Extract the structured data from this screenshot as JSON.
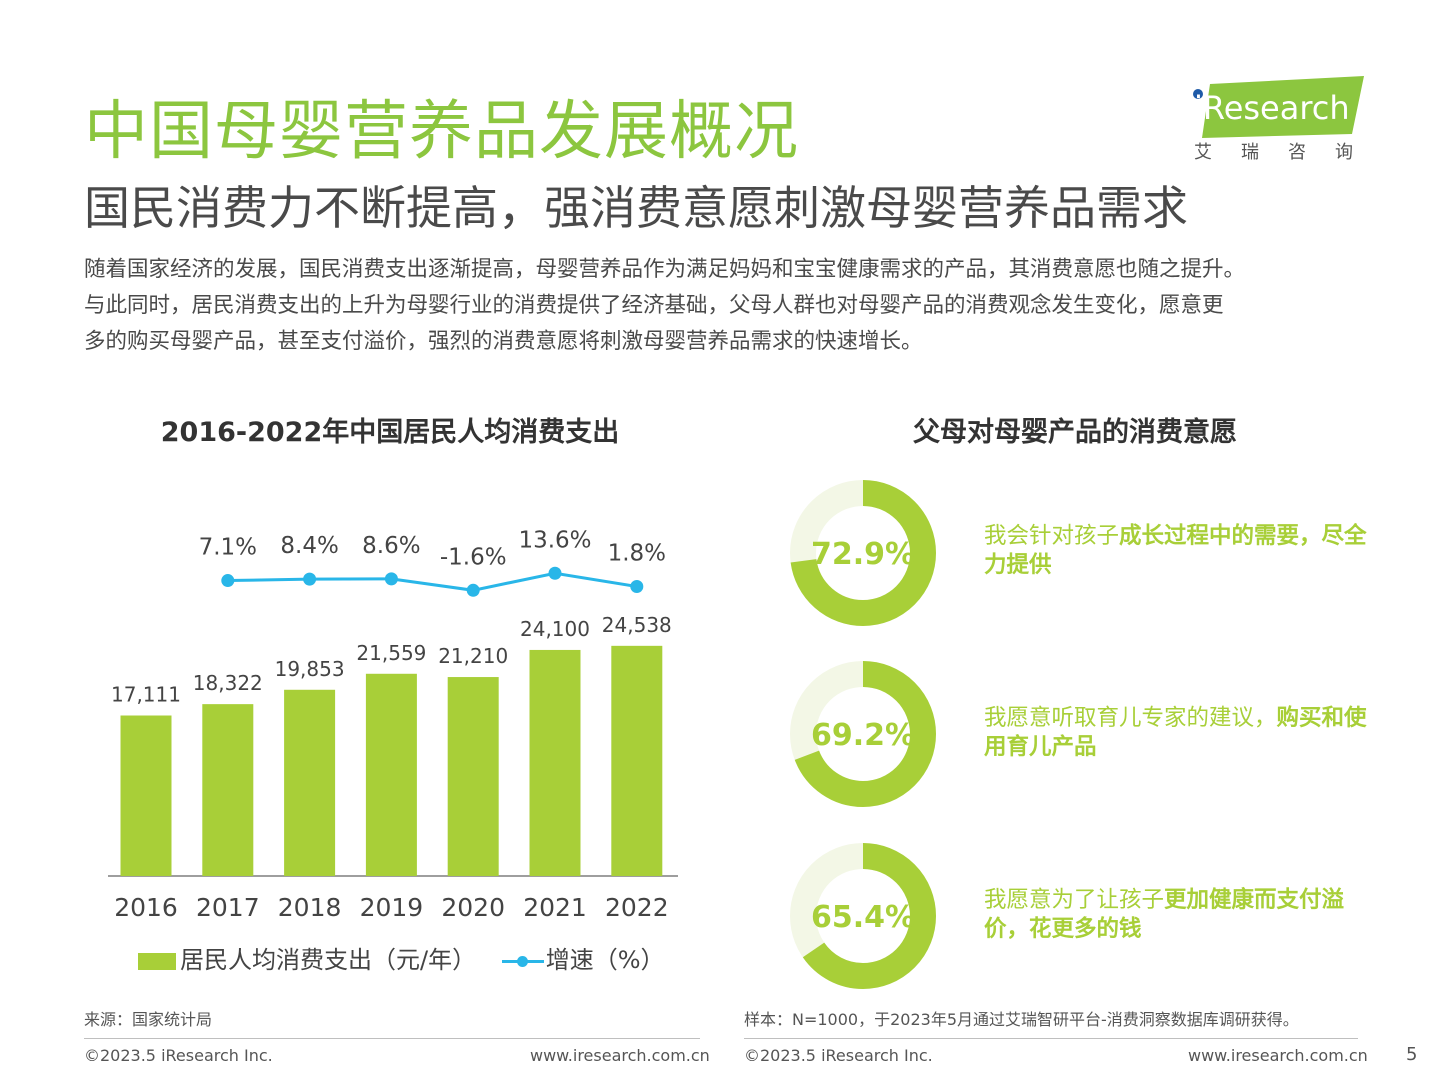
{
  "header": {
    "title": "中国母婴营养品发展概况",
    "subtitle": "国民消费力不断提高，强消费意愿刺激母婴营养品需求",
    "intro_lines": [
      "随着国家经济的发展，国民消费支出逐渐提高，母婴营养品作为满足妈妈和宝宝健康需求的产品，其消费意愿也随之提升。",
      "与此同时，居民消费支出的上升为母婴行业的消费提供了经济基础，父母人群也对母婴产品的消费观念发生变化，愿意更",
      "多的购买母婴产品，甚至支付溢价，强烈的消费意愿将刺激母婴营养品需求的快速增长。"
    ]
  },
  "logo": {
    "name": "iResearch",
    "cn": "艾瑞咨询",
    "color": "#8cc63f"
  },
  "chart_data": [
    {
      "type": "bar",
      "title": "2016-2022年中国居民人均消费支出",
      "categories": [
        "2016",
        "2017",
        "2018",
        "2019",
        "2020",
        "2021",
        "2022"
      ],
      "series": [
        {
          "name": "居民人均消费支出（元/年）",
          "type": "bar",
          "values": [
            17111,
            18322,
            19853,
            21559,
            21210,
            24100,
            24538
          ],
          "labels": [
            "17,111",
            "18,322",
            "19,853",
            "21,559",
            "21,210",
            "24,100",
            "24,538"
          ],
          "color": "#a8cf38"
        },
        {
          "name": "增速（%）",
          "type": "line",
          "x": [
            "2017",
            "2018",
            "2019",
            "2020",
            "2021",
            "2022"
          ],
          "values": [
            7.1,
            8.4,
            8.6,
            -1.6,
            13.6,
            1.8
          ],
          "labels": [
            "7.1%",
            "8.4%",
            "8.6%",
            "-1.6%",
            "13.6%",
            "1.8%"
          ],
          "color": "#29b6e8"
        }
      ],
      "legend": "bottom"
    },
    {
      "type": "pie",
      "title": "父母对母婴产品的消费意愿",
      "items": [
        {
          "value": 72.9,
          "label": "72.9%",
          "text_plain": "我会针对孩子",
          "text_bold": "成长过程中的需要，尽全力提供"
        },
        {
          "value": 69.2,
          "label": "69.2%",
          "text_plain": "我愿意听取育儿专家的建议，",
          "text_bold": "购买和使用育儿产品"
        },
        {
          "value": 65.4,
          "label": "65.4%",
          "text_plain": "我愿意为了让孩子",
          "text_bold": "更加健康而支付溢价，花更多的钱"
        }
      ],
      "colors": {
        "fill": "#a8cf38",
        "track": "#f3f7e6"
      }
    }
  ],
  "footer": {
    "source": "来源：国家统计局",
    "sample": "样本：N=1000，于2023年5月通过艾瑞智研平台-消费洞察数据库调研获得。",
    "copyright_left": "©2023.5 iResearch Inc.",
    "url_left": "www.iresearch.com.cn",
    "copyright_right": "©2023.5 iResearch Inc.",
    "url_right": "www.iresearch.com.cn",
    "page_number": "5"
  }
}
